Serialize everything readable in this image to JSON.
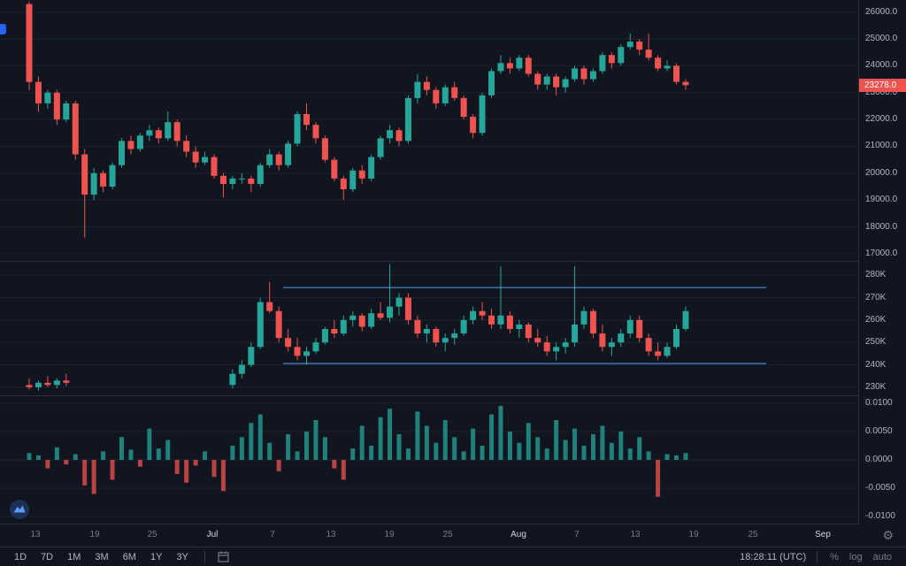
{
  "colors": {
    "background": "#11151f",
    "up": "#26a69a",
    "down": "#ef5350",
    "grid": "#1c2230",
    "separator": "#2a2e39",
    "axis_text": "#b2b5be",
    "dim_text": "#787b86",
    "trendline": "#5b9cf6",
    "price_tag_bg": "#ef5350",
    "accent_blue": "#2962ff"
  },
  "price_label": {
    "text": "23278.0",
    "value": 23278
  },
  "toolbar": {
    "ranges": [
      "1D",
      "7D",
      "1M",
      "3M",
      "6M",
      "1Y",
      "3Y"
    ],
    "clock": "18:28:11 (UTC)",
    "percent": "%",
    "log": "log",
    "auto": "auto"
  },
  "icons": {
    "bottom_left": "chart-logo-icon",
    "axis_settings": "gear-icon",
    "toolbar_calendar": "go-to-date-icon"
  },
  "time_axis": {
    "labels": [
      {
        "text": "13",
        "x": 40,
        "month": false
      },
      {
        "text": "19",
        "x": 107,
        "month": false
      },
      {
        "text": "25",
        "x": 172,
        "month": false
      },
      {
        "text": "Jul",
        "x": 240,
        "month": true
      },
      {
        "text": "7",
        "x": 308,
        "month": false
      },
      {
        "text": "13",
        "x": 374,
        "month": false
      },
      {
        "text": "19",
        "x": 440,
        "month": false
      },
      {
        "text": "25",
        "x": 506,
        "month": false
      },
      {
        "text": "Aug",
        "x": 586,
        "month": true
      },
      {
        "text": "7",
        "x": 652,
        "month": false
      },
      {
        "text": "13",
        "x": 718,
        "month": false
      },
      {
        "text": "19",
        "x": 784,
        "month": false
      },
      {
        "text": "25",
        "x": 851,
        "month": false
      },
      {
        "text": "Sep",
        "x": 930,
        "month": true
      }
    ]
  },
  "chart_data": [
    {
      "type": "candlestick",
      "name": "price-pane",
      "ylim": [
        16700,
        26450
      ],
      "ticks": [
        {
          "value": 26000,
          "label": "26000.0"
        },
        {
          "value": 25000,
          "label": "25000.0"
        },
        {
          "value": 24000,
          "label": "24000.0"
        },
        {
          "value": 23000,
          "label": "23000.0"
        },
        {
          "value": 22000,
          "label": "22000.0"
        },
        {
          "value": 21000,
          "label": "21000.0"
        },
        {
          "value": 20000,
          "label": "20000.0"
        },
        {
          "value": 19000,
          "label": "19000.0"
        },
        {
          "value": 18000,
          "label": "18000.0"
        },
        {
          "value": 17000,
          "label": "17000.0"
        }
      ],
      "candles": [
        [
          26300,
          26400,
          23100,
          23400
        ],
        [
          23400,
          23600,
          22300,
          22600
        ],
        [
          22600,
          23100,
          22400,
          23000
        ],
        [
          23000,
          23100,
          21800,
          22000
        ],
        [
          22000,
          22700,
          21900,
          22600
        ],
        [
          22600,
          22700,
          20500,
          20700
        ],
        [
          20700,
          20900,
          17600,
          19200
        ],
        [
          19200,
          20200,
          19000,
          20000
        ],
        [
          20000,
          20100,
          19300,
          19500
        ],
        [
          19500,
          20400,
          19400,
          20300
        ],
        [
          20300,
          21300,
          20200,
          21200
        ],
        [
          21200,
          21400,
          20700,
          20900
        ],
        [
          20900,
          21500,
          20800,
          21400
        ],
        [
          21400,
          21800,
          21200,
          21600
        ],
        [
          21600,
          21700,
          21100,
          21300
        ],
        [
          21300,
          22300,
          21200,
          21900
        ],
        [
          21900,
          22000,
          21000,
          21200
        ],
        [
          21200,
          21400,
          20600,
          20800
        ],
        [
          20800,
          21000,
          20200,
          20400
        ],
        [
          20400,
          20800,
          20300,
          20600
        ],
        [
          20600,
          20700,
          19800,
          19900
        ],
        [
          19900,
          20000,
          19100,
          19600
        ],
        [
          19600,
          19900,
          19400,
          19800
        ],
        [
          19800,
          20000,
          19600,
          19800
        ],
        [
          19800,
          19900,
          19300,
          19600
        ],
        [
          19600,
          20400,
          19500,
          20300
        ],
        [
          20300,
          20900,
          20200,
          20700
        ],
        [
          20700,
          20800,
          20100,
          20300
        ],
        [
          20300,
          21200,
          20200,
          21100
        ],
        [
          21100,
          22300,
          21000,
          22200
        ],
        [
          22200,
          22600,
          21600,
          21800
        ],
        [
          21800,
          21900,
          21100,
          21300
        ],
        [
          21300,
          21400,
          20400,
          20500
        ],
        [
          20500,
          20600,
          19700,
          19800
        ],
        [
          19800,
          19900,
          19000,
          19400
        ],
        [
          19400,
          20200,
          19300,
          20100
        ],
        [
          20100,
          20300,
          19600,
          19800
        ],
        [
          19800,
          20700,
          19700,
          20600
        ],
        [
          20600,
          21400,
          20500,
          21300
        ],
        [
          21300,
          21800,
          21100,
          21600
        ],
        [
          21600,
          21700,
          21000,
          21200
        ],
        [
          21200,
          22900,
          21100,
          22800
        ],
        [
          22800,
          23700,
          22600,
          23400
        ],
        [
          23400,
          23600,
          22900,
          23100
        ],
        [
          23100,
          23200,
          22400,
          22600
        ],
        [
          22600,
          23300,
          22500,
          23200
        ],
        [
          23200,
          23400,
          22700,
          22800
        ],
        [
          22800,
          22900,
          22000,
          22100
        ],
        [
          22100,
          22200,
          21300,
          21500
        ],
        [
          21500,
          23000,
          21400,
          22900
        ],
        [
          22900,
          23900,
          22800,
          23800
        ],
        [
          23800,
          24400,
          23700,
          24100
        ],
        [
          24100,
          24300,
          23700,
          23900
        ],
        [
          23900,
          24400,
          23800,
          24300
        ],
        [
          24300,
          24400,
          23600,
          23700
        ],
        [
          23700,
          23800,
          23100,
          23300
        ],
        [
          23300,
          23700,
          23100,
          23600
        ],
        [
          23600,
          23700,
          22900,
          23200
        ],
        [
          23200,
          23600,
          23000,
          23500
        ],
        [
          23500,
          24000,
          23400,
          23900
        ],
        [
          23900,
          24000,
          23300,
          23500
        ],
        [
          23500,
          23900,
          23400,
          23800
        ],
        [
          23800,
          24500,
          23700,
          24400
        ],
        [
          24400,
          24500,
          23900,
          24100
        ],
        [
          24100,
          24800,
          24000,
          24700
        ],
        [
          24700,
          25200,
          24600,
          24900
        ],
        [
          24900,
          25000,
          24400,
          24600
        ],
        [
          24600,
          25200,
          24200,
          24300
        ],
        [
          24300,
          24400,
          23800,
          23900
        ],
        [
          23900,
          24200,
          23800,
          24000
        ],
        [
          24000,
          24100,
          23300,
          23400
        ],
        [
          23400,
          23500,
          23100,
          23278
        ]
      ]
    },
    {
      "type": "candlestick",
      "name": "lower-study-pane",
      "ylim": [
        226000,
        286000
      ],
      "ticks": [
        {
          "value": 280000,
          "label": "280K"
        },
        {
          "value": 270000,
          "label": "270K"
        },
        {
          "value": 260000,
          "label": "260K"
        },
        {
          "value": 250000,
          "label": "250K"
        },
        {
          "value": 240000,
          "label": "240K"
        },
        {
          "value": 230000,
          "label": "230K"
        }
      ],
      "lines": [
        {
          "value": 274500,
          "x1": 320,
          "x2": 866
        },
        {
          "value": 240600,
          "x1": 320,
          "x2": 866
        }
      ],
      "candles": [
        [
          231000,
          234000,
          229000,
          230000
        ],
        [
          230000,
          233000,
          228500,
          232000
        ],
        [
          232000,
          235000,
          230000,
          231000
        ],
        [
          231000,
          234000,
          229500,
          233000
        ],
        [
          233000,
          236000,
          230500,
          232000
        ],
        null,
        null,
        null,
        null,
        null,
        null,
        null,
        null,
        null,
        null,
        null,
        null,
        null,
        null,
        null,
        null,
        null,
        [
          231000,
          238000,
          229500,
          236000
        ],
        [
          236000,
          242000,
          234000,
          240000
        ],
        [
          240000,
          250000,
          239000,
          248000
        ],
        [
          248000,
          270000,
          247000,
          268000
        ],
        [
          268000,
          277000,
          263000,
          264000
        ],
        [
          264000,
          266000,
          250000,
          252000
        ],
        [
          252000,
          256000,
          246000,
          248000
        ],
        [
          248000,
          252000,
          242000,
          244000
        ],
        [
          244000,
          248000,
          240000,
          246000
        ],
        [
          246000,
          252000,
          245000,
          250000
        ],
        [
          250000,
          257000,
          249000,
          256000
        ],
        [
          256000,
          260000,
          252000,
          254000
        ],
        [
          254000,
          262000,
          253000,
          260000
        ],
        [
          260000,
          264000,
          257000,
          262000
        ],
        [
          262000,
          263000,
          255000,
          257000
        ],
        [
          257000,
          265000,
          256000,
          263000
        ],
        [
          263000,
          268000,
          260000,
          261000
        ],
        [
          261000,
          285000,
          259000,
          266000
        ],
        [
          266000,
          272000,
          262000,
          270000
        ],
        [
          270000,
          272000,
          258000,
          260000
        ],
        [
          260000,
          262000,
          252000,
          254000
        ],
        [
          254000,
          258000,
          250000,
          256000
        ],
        [
          256000,
          257000,
          248000,
          250000
        ],
        [
          250000,
          254000,
          246000,
          252000
        ],
        [
          252000,
          256000,
          249000,
          254000
        ],
        [
          254000,
          262000,
          253000,
          260000
        ],
        [
          260000,
          266000,
          258000,
          264000
        ],
        [
          264000,
          268000,
          260000,
          262000
        ],
        [
          262000,
          265000,
          256000,
          258000
        ],
        [
          258000,
          284000,
          256000,
          262000
        ],
        [
          262000,
          264000,
          254000,
          256000
        ],
        [
          256000,
          260000,
          252000,
          258000
        ],
        [
          258000,
          259000,
          250000,
          252000
        ],
        [
          252000,
          256000,
          248000,
          250000
        ],
        [
          250000,
          253000,
          244000,
          246000
        ],
        [
          246000,
          250000,
          242000,
          248000
        ],
        [
          248000,
          252000,
          245000,
          250000
        ],
        [
          250000,
          284000,
          248000,
          258000
        ],
        [
          258000,
          266000,
          256000,
          264000
        ],
        [
          264000,
          265000,
          252000,
          254000
        ],
        [
          254000,
          258000,
          246000,
          248000
        ],
        [
          248000,
          252000,
          244000,
          250000
        ],
        [
          250000,
          256000,
          248000,
          254000
        ],
        [
          254000,
          262000,
          252000,
          260000
        ],
        [
          260000,
          262000,
          250000,
          252000
        ],
        [
          252000,
          254000,
          244000,
          246000
        ],
        [
          246000,
          250000,
          242000,
          244000
        ],
        [
          244000,
          250000,
          243000,
          248000
        ],
        [
          248000,
          258000,
          247000,
          256000
        ],
        [
          256000,
          266000,
          255000,
          264000
        ]
      ]
    },
    {
      "type": "histogram",
      "name": "funding-pane",
      "ylim": [
        -0.0112,
        0.0112
      ],
      "ticks": [
        {
          "value": 0.01,
          "label": "0.0100"
        },
        {
          "value": 0.005,
          "label": "0.0050"
        },
        {
          "value": 0.0,
          "label": "0.0000"
        },
        {
          "value": -0.005,
          "label": "-0.0050"
        },
        {
          "value": -0.01,
          "label": "-0.0100"
        }
      ],
      "values": [
        0.0012,
        0.0008,
        -0.0015,
        0.0022,
        -0.0008,
        0.001,
        -0.0045,
        -0.006,
        0.0015,
        -0.0035,
        0.004,
        0.0018,
        -0.0012,
        0.0055,
        0.002,
        0.0035,
        -0.0025,
        -0.004,
        -0.001,
        0.0015,
        -0.003,
        -0.0055,
        0.0025,
        0.004,
        0.0065,
        0.008,
        0.003,
        -0.002,
        0.0045,
        0.0015,
        0.005,
        0.007,
        0.004,
        -0.0015,
        -0.0035,
        0.002,
        0.006,
        0.0025,
        0.0075,
        0.009,
        0.0045,
        0.002,
        0.0085,
        0.006,
        0.003,
        0.007,
        0.004,
        0.0015,
        0.0055,
        0.0025,
        0.008,
        0.0095,
        0.005,
        0.003,
        0.0065,
        0.004,
        0.002,
        0.007,
        0.0035,
        0.0055,
        0.0025,
        0.0045,
        0.006,
        0.003,
        0.005,
        0.002,
        0.004,
        0.0015,
        -0.0065,
        0.001,
        0.0008,
        0.0012
      ]
    }
  ]
}
